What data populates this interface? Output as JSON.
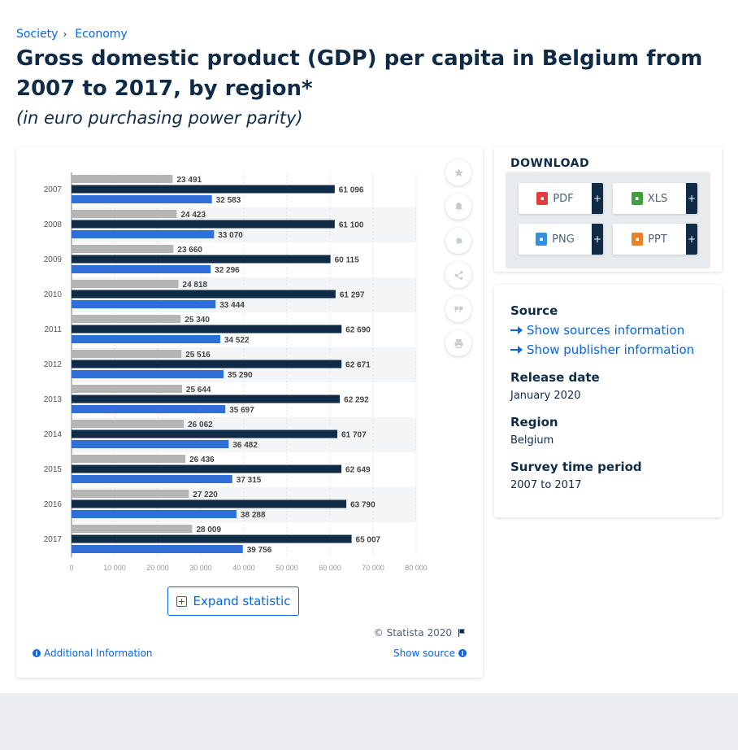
{
  "breadcrumb": [
    {
      "label": "Society"
    },
    {
      "label": "Economy"
    }
  ],
  "page": {
    "title": "Gross domestic product (GDP) per capita in Belgium from 2007 to 2017, by region*",
    "subtitle": "(in euro purchasing power parity)"
  },
  "chart_tools": [
    "star-icon",
    "bell-icon",
    "gear-icon",
    "share-icon",
    "quote-icon",
    "print-icon"
  ],
  "chart_data": {
    "type": "bar",
    "orientation": "horizontal",
    "categories": [
      "2007",
      "2008",
      "2009",
      "2010",
      "2011",
      "2012",
      "2013",
      "2014",
      "2015",
      "2016",
      "2017"
    ],
    "series": [
      {
        "color": "#b5b5b5",
        "values": [
          23491,
          24423,
          23660,
          24818,
          25340,
          25516,
          25644,
          26062,
          26436,
          27220,
          28009
        ]
      },
      {
        "color": "#0f2b46",
        "values": [
          61096,
          61100,
          60115,
          61297,
          62690,
          62671,
          62292,
          61707,
          62649,
          63790,
          65007
        ]
      },
      {
        "color": "#2e6fd8",
        "values": [
          32583,
          33070,
          32296,
          33444,
          34522,
          35290,
          35697,
          36482,
          37315,
          38288,
          39756
        ]
      }
    ],
    "value_labels": [
      [
        "23 491",
        "24 423",
        "23 660",
        "24 818",
        "25 340",
        "25 516",
        "25 644",
        "26 062",
        "26 436",
        "27 220",
        "28 009"
      ],
      [
        "61 096",
        "61 100",
        "60 115",
        "61 297",
        "62 690",
        "62 671",
        "62 292",
        "61 707",
        "62 649",
        "63 790",
        "65 007"
      ],
      [
        "32 583",
        "33 070",
        "32 296",
        "33 444",
        "34 522",
        "35 290",
        "35 697",
        "36 482",
        "37 315",
        "38 288",
        "39 756"
      ]
    ],
    "xlim": [
      0,
      80000
    ],
    "x_ticks": [
      0,
      10000,
      20000,
      30000,
      40000,
      50000,
      60000,
      70000,
      80000
    ],
    "x_tick_labels": [
      "0",
      "10 000",
      "20 000",
      "30 000",
      "40 000",
      "50 000",
      "60 000",
      "70 000",
      "80 000"
    ],
    "grid": true
  },
  "chart_footer": {
    "expand_label": "Expand statistic",
    "copyright": "© Statista 2020",
    "additional_info": "Additional Information",
    "show_source": "Show source"
  },
  "download": {
    "heading": "DOWNLOAD",
    "buttons": [
      {
        "label": "PDF",
        "color": "#e03c3c"
      },
      {
        "label": "XLS",
        "color": "#3f9f3f"
      },
      {
        "label": "PNG",
        "color": "#3a8fd8"
      },
      {
        "label": "PPT",
        "color": "#e8822a"
      }
    ],
    "plus": "+"
  },
  "info": {
    "source_label": "Source",
    "show_sources": "Show sources information",
    "show_publisher": "Show publisher information",
    "release_label": "Release date",
    "release_value": "January 2020",
    "region_label": "Region",
    "region_value": "Belgium",
    "survey_label": "Survey time period",
    "survey_value": "2007 to 2017"
  }
}
